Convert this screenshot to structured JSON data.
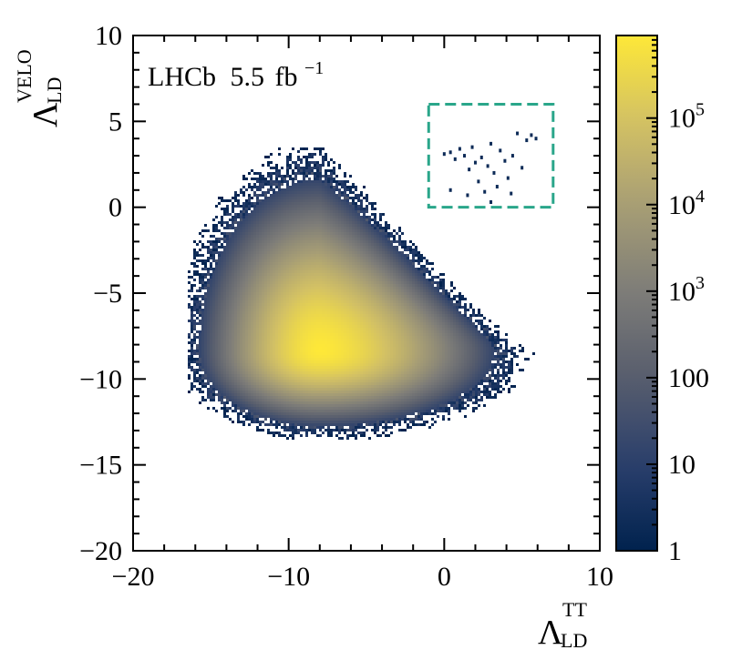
{
  "chart_data": {
    "type": "heatmap",
    "title": "",
    "annotation": {
      "experiment": "LHCb",
      "luminosity": "5.5",
      "lumi_unit": "fb",
      "lumi_exponent": "−1"
    },
    "xlabel": {
      "symbol": "Λ",
      "superscript": "TT",
      "subscript": "LD"
    },
    "ylabel": {
      "symbol": "Λ",
      "superscript": "VELO",
      "subscript": "LD"
    },
    "xlim": [
      -20,
      10
    ],
    "ylim": [
      -20,
      10
    ],
    "x_ticks": [
      -20,
      -10,
      0,
      10
    ],
    "y_ticks": [
      -20,
      -15,
      -10,
      -5,
      0,
      5,
      10
    ],
    "x_tick_labels": [
      "−20",
      "−10",
      "0",
      "10"
    ],
    "y_tick_labels": [
      "−20",
      "−15",
      "−10",
      "−5",
      "0",
      "5",
      "10"
    ],
    "colorbar": {
      "scale": "log",
      "range": [
        1,
        900000
      ],
      "ticks": [
        1,
        10,
        100,
        1000,
        10000,
        100000
      ],
      "tick_labels": [
        {
          "base": "1",
          "exp": ""
        },
        {
          "base": "10",
          "exp": ""
        },
        {
          "base": "100",
          "exp": ""
        },
        {
          "base": "10",
          "exp": "3"
        },
        {
          "base": "10",
          "exp": "4"
        },
        {
          "base": "10",
          "exp": "5"
        }
      ],
      "colormap": [
        "#00224e",
        "#2a3f6c",
        "#575d6d",
        "#7d7c78",
        "#a69d75",
        "#d3c164",
        "#fee838"
      ]
    },
    "distribution": {
      "peak_x": -8.0,
      "peak_y": -8.4,
      "peak_count": 900000,
      "x_range": [
        -16.5,
        4.5
      ],
      "y_range": [
        -13.5,
        3.5
      ]
    },
    "signal_region": {
      "x": [
        -1,
        7
      ],
      "y": [
        0,
        6
      ],
      "color": "#2aa68a",
      "style": "dashed"
    },
    "signal_region_points": [
      [
        0.0,
        3.1
      ],
      [
        0.4,
        3.2
      ],
      [
        0.7,
        2.8
      ],
      [
        1.0,
        3.4
      ],
      [
        1.3,
        3.0
      ],
      [
        1.6,
        2.2
      ],
      [
        1.8,
        3.5
      ],
      [
        2.0,
        2.6
      ],
      [
        2.2,
        1.5
      ],
      [
        2.4,
        2.9
      ],
      [
        2.6,
        0.9
      ],
      [
        2.8,
        2.4
      ],
      [
        3.0,
        3.7
      ],
      [
        3.2,
        2.0
      ],
      [
        3.4,
        1.2
      ],
      [
        3.6,
        3.3
      ],
      [
        3.9,
        2.7
      ],
      [
        4.1,
        1.7
      ],
      [
        4.4,
        3.0
      ],
      [
        4.7,
        4.3
      ],
      [
        5.0,
        2.3
      ],
      [
        5.3,
        3.9
      ],
      [
        5.6,
        4.2
      ],
      [
        5.9,
        4.0
      ],
      [
        1.5,
        0.7
      ],
      [
        0.4,
        1.0
      ],
      [
        3.0,
        0.3
      ],
      [
        4.3,
        0.8
      ]
    ]
  }
}
